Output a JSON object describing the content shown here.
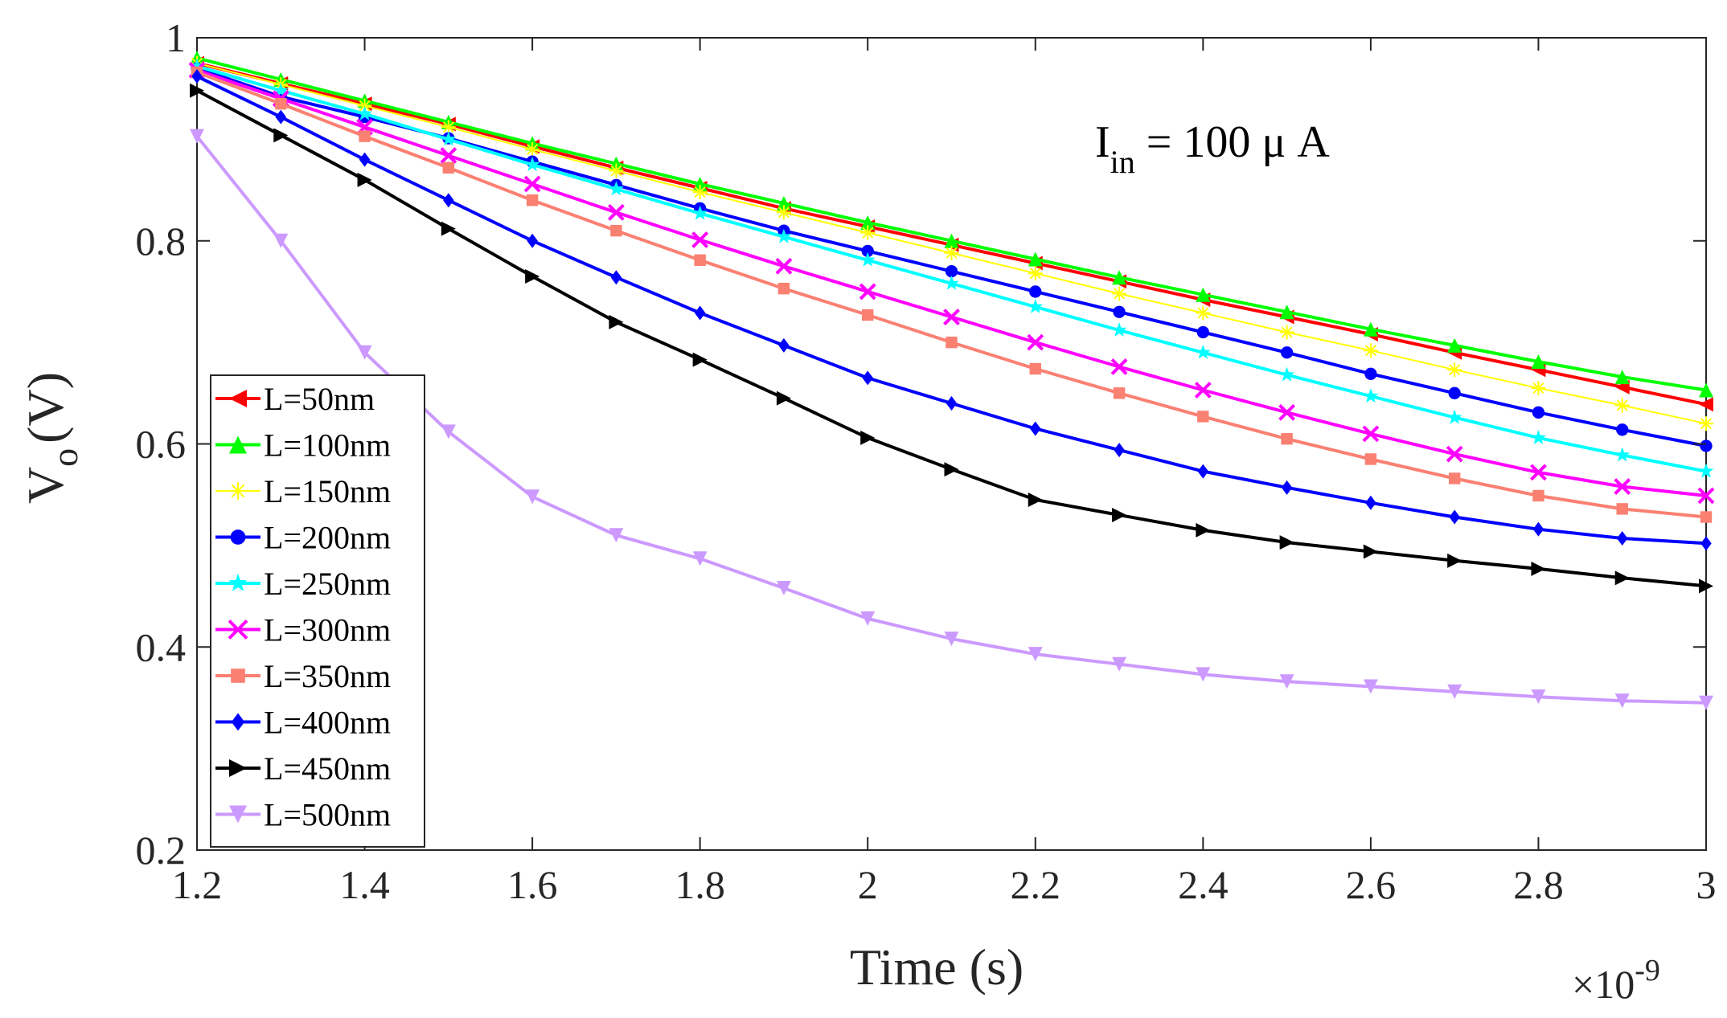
{
  "chart_data": {
    "type": "line",
    "title": "",
    "xlabel": "Time (s)",
    "ylabel_main": "V",
    "ylabel_sub": "o",
    "ylabel_unit": "(V)",
    "xlim": [
      1.2,
      3.0
    ],
    "ylim": [
      0.2,
      1.0
    ],
    "x_ticks": [
      1.2,
      1.4,
      1.6,
      1.8,
      2.0,
      2.2,
      2.4,
      2.6,
      2.8,
      3.0
    ],
    "x_tick_labels": [
      "1.2",
      "1.4",
      "1.6",
      "1.8",
      "2",
      "2.2",
      "2.4",
      "2.6",
      "2.8",
      "3"
    ],
    "y_ticks": [
      0.2,
      0.4,
      0.6,
      0.8,
      1.0
    ],
    "y_tick_labels": [
      "0.2",
      "0.4",
      "0.6",
      "0.8",
      "1"
    ],
    "x_exponent_base": "×10",
    "x_exponent_power": "-9",
    "annotation": {
      "main": "I",
      "sub": "in",
      "rest": " = 100 μ A"
    },
    "grid": false,
    "legend_position": "bottom-left",
    "x": [
      1.2,
      1.3,
      1.4,
      1.5,
      1.6,
      1.7,
      1.8,
      1.9,
      2.0,
      2.1,
      2.2,
      2.3,
      2.4,
      2.5,
      2.6,
      2.7,
      2.8,
      2.9,
      3.0
    ],
    "series": [
      {
        "name": "L=50nm",
        "color": "#ff0000",
        "marker": "triangle-left",
        "values": [
          0.975,
          0.955,
          0.935,
          0.915,
          0.893,
          0.872,
          0.852,
          0.832,
          0.814,
          0.796,
          0.778,
          0.76,
          0.742,
          0.725,
          0.708,
          0.69,
          0.673,
          0.656,
          0.639
        ]
      },
      {
        "name": "L=100nm",
        "color": "#00ff00",
        "marker": "triangle-up",
        "values": [
          0.98,
          0.959,
          0.938,
          0.917,
          0.896,
          0.876,
          0.856,
          0.837,
          0.818,
          0.8,
          0.782,
          0.764,
          0.747,
          0.73,
          0.713,
          0.697,
          0.681,
          0.666,
          0.653
        ]
      },
      {
        "name": "L=150nm",
        "color": "#ffff00",
        "marker": "asterisk",
        "values": [
          0.975,
          0.954,
          0.933,
          0.912,
          0.89,
          0.869,
          0.848,
          0.828,
          0.808,
          0.788,
          0.768,
          0.748,
          0.729,
          0.71,
          0.692,
          0.673,
          0.655,
          0.638,
          0.62
        ]
      },
      {
        "name": "L=200nm",
        "color": "#0000ff",
        "marker": "circle",
        "values": [
          0.97,
          0.942,
          0.922,
          0.901,
          0.878,
          0.855,
          0.832,
          0.81,
          0.79,
          0.77,
          0.75,
          0.73,
          0.71,
          0.69,
          0.669,
          0.65,
          0.631,
          0.614,
          0.598
        ]
      },
      {
        "name": "L=250nm",
        "color": "#00ffff",
        "marker": "star",
        "values": [
          0.972,
          0.948,
          0.925,
          0.9,
          0.875,
          0.851,
          0.827,
          0.804,
          0.781,
          0.758,
          0.735,
          0.712,
          0.69,
          0.668,
          0.647,
          0.626,
          0.606,
          0.589,
          0.573
        ]
      },
      {
        "name": "L=300nm",
        "color": "#ff00ff",
        "marker": "x",
        "values": [
          0.968,
          0.94,
          0.912,
          0.884,
          0.856,
          0.828,
          0.801,
          0.775,
          0.75,
          0.725,
          0.7,
          0.676,
          0.653,
          0.631,
          0.61,
          0.59,
          0.572,
          0.558,
          0.549
        ]
      },
      {
        "name": "L=350nm",
        "color": "#fa8072",
        "marker": "square",
        "values": [
          0.966,
          0.935,
          0.903,
          0.872,
          0.84,
          0.81,
          0.781,
          0.753,
          0.727,
          0.7,
          0.674,
          0.65,
          0.627,
          0.605,
          0.585,
          0.566,
          0.549,
          0.536,
          0.528
        ]
      },
      {
        "name": "L=400nm",
        "color": "#0000ff",
        "marker": "diamond",
        "values": [
          0.962,
          0.922,
          0.88,
          0.84,
          0.8,
          0.764,
          0.729,
          0.697,
          0.665,
          0.64,
          0.615,
          0.594,
          0.573,
          0.557,
          0.542,
          0.528,
          0.516,
          0.507,
          0.502
        ]
      },
      {
        "name": "L=450nm",
        "color": "#000000",
        "marker": "triangle-right",
        "values": [
          0.948,
          0.904,
          0.86,
          0.812,
          0.765,
          0.72,
          0.683,
          0.645,
          0.606,
          0.575,
          0.545,
          0.53,
          0.515,
          0.503,
          0.494,
          0.485,
          0.477,
          0.468,
          0.46
        ]
      },
      {
        "name": "L=500nm",
        "color": "#cc99ff",
        "marker": "triangle-down",
        "values": [
          0.903,
          0.8,
          0.69,
          0.612,
          0.548,
          0.51,
          0.487,
          0.458,
          0.428,
          0.408,
          0.393,
          0.383,
          0.373,
          0.366,
          0.361,
          0.356,
          0.351,
          0.347,
          0.345
        ]
      }
    ]
  }
}
